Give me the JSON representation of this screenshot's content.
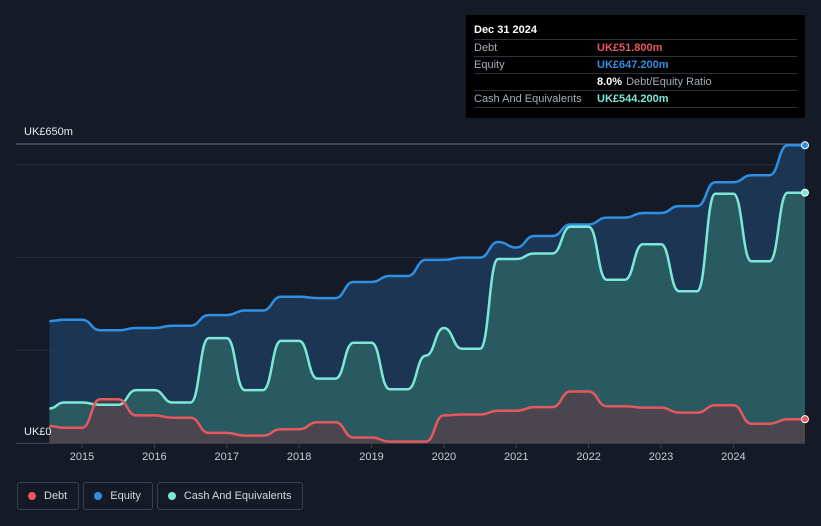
{
  "chart_data": {
    "type": "area",
    "currency_unit": "UK£m",
    "y_axis": {
      "top_label": "UK£650m",
      "bottom_label": "UK£0",
      "ylim": [
        0,
        650
      ]
    },
    "x_ticks": [
      "2015",
      "2016",
      "2017",
      "2018",
      "2019",
      "2020",
      "2021",
      "2022",
      "2023",
      "2024"
    ],
    "xlim": [
      2014.53,
      2024.99
    ],
    "grid": true,
    "legend_position": "bottom-left",
    "series": [
      {
        "name": "Equity",
        "color": "#2f8fe3",
        "points": [
          [
            2014.55,
            265
          ],
          [
            2014.75,
            268
          ],
          [
            2015.0,
            268
          ],
          [
            2015.25,
            245
          ],
          [
            2015.5,
            245
          ],
          [
            2015.75,
            250
          ],
          [
            2016.0,
            250
          ],
          [
            2016.25,
            255
          ],
          [
            2016.5,
            255
          ],
          [
            2016.75,
            278
          ],
          [
            2017.0,
            278
          ],
          [
            2017.25,
            288
          ],
          [
            2017.5,
            288
          ],
          [
            2017.75,
            318
          ],
          [
            2018.0,
            318
          ],
          [
            2018.25,
            315
          ],
          [
            2018.5,
            315
          ],
          [
            2018.75,
            350
          ],
          [
            2019.0,
            350
          ],
          [
            2019.25,
            363
          ],
          [
            2019.5,
            363
          ],
          [
            2019.75,
            398
          ],
          [
            2020.0,
            398
          ],
          [
            2020.25,
            403
          ],
          [
            2020.5,
            403
          ],
          [
            2020.75,
            437
          ],
          [
            2021.0,
            425
          ],
          [
            2021.25,
            450
          ],
          [
            2021.5,
            450
          ],
          [
            2021.75,
            475
          ],
          [
            2022.0,
            475
          ],
          [
            2022.25,
            490
          ],
          [
            2022.5,
            490
          ],
          [
            2022.75,
            500
          ],
          [
            2023.0,
            500
          ],
          [
            2023.25,
            515
          ],
          [
            2023.5,
            515
          ],
          [
            2023.75,
            567
          ],
          [
            2024.0,
            567
          ],
          [
            2024.25,
            582
          ],
          [
            2024.5,
            582
          ],
          [
            2024.75,
            647.2
          ],
          [
            2024.99,
            647.2
          ]
        ]
      },
      {
        "name": "Cash And Equivalents",
        "color": "#7ce8d8",
        "points": [
          [
            2014.55,
            75
          ],
          [
            2014.75,
            88
          ],
          [
            2015.0,
            88
          ],
          [
            2015.25,
            83
          ],
          [
            2015.5,
            83
          ],
          [
            2015.75,
            115
          ],
          [
            2016.0,
            115
          ],
          [
            2016.25,
            88
          ],
          [
            2016.5,
            88
          ],
          [
            2016.75,
            228
          ],
          [
            2017.0,
            228
          ],
          [
            2017.25,
            115
          ],
          [
            2017.5,
            115
          ],
          [
            2017.75,
            222
          ],
          [
            2018.0,
            222
          ],
          [
            2018.25,
            140
          ],
          [
            2018.5,
            140
          ],
          [
            2018.75,
            218
          ],
          [
            2019.0,
            218
          ],
          [
            2019.25,
            117
          ],
          [
            2019.5,
            117
          ],
          [
            2019.75,
            190
          ],
          [
            2020.0,
            250
          ],
          [
            2020.25,
            205
          ],
          [
            2020.5,
            205
          ],
          [
            2020.75,
            400
          ],
          [
            2021.0,
            400
          ],
          [
            2021.25,
            412
          ],
          [
            2021.5,
            412
          ],
          [
            2021.75,
            470
          ],
          [
            2022.0,
            470
          ],
          [
            2022.25,
            355
          ],
          [
            2022.5,
            355
          ],
          [
            2022.75,
            432
          ],
          [
            2023.0,
            432
          ],
          [
            2023.25,
            330
          ],
          [
            2023.5,
            330
          ],
          [
            2023.75,
            542
          ],
          [
            2024.0,
            542
          ],
          [
            2024.25,
            395
          ],
          [
            2024.5,
            395
          ],
          [
            2024.75,
            544.2
          ],
          [
            2024.99,
            544.2
          ]
        ]
      },
      {
        "name": "Debt",
        "color": "#e4585e",
        "points": [
          [
            2014.55,
            37
          ],
          [
            2014.75,
            33
          ],
          [
            2015.0,
            33
          ],
          [
            2015.25,
            95
          ],
          [
            2015.5,
            95
          ],
          [
            2015.75,
            60
          ],
          [
            2016.0,
            60
          ],
          [
            2016.25,
            55
          ],
          [
            2016.5,
            55
          ],
          [
            2016.75,
            22
          ],
          [
            2017.0,
            22
          ],
          [
            2017.25,
            16
          ],
          [
            2017.5,
            16
          ],
          [
            2017.75,
            30
          ],
          [
            2018.0,
            30
          ],
          [
            2018.25,
            45
          ],
          [
            2018.5,
            45
          ],
          [
            2018.75,
            12
          ],
          [
            2019.0,
            12
          ],
          [
            2019.25,
            3
          ],
          [
            2019.5,
            3
          ],
          [
            2019.75,
            3
          ],
          [
            2020.0,
            60
          ],
          [
            2020.25,
            62
          ],
          [
            2020.5,
            62
          ],
          [
            2020.75,
            70
          ],
          [
            2021.0,
            70
          ],
          [
            2021.25,
            78
          ],
          [
            2021.5,
            78
          ],
          [
            2021.75,
            112
          ],
          [
            2022.0,
            112
          ],
          [
            2022.25,
            80
          ],
          [
            2022.5,
            80
          ],
          [
            2022.75,
            77
          ],
          [
            2023.0,
            77
          ],
          [
            2023.25,
            66
          ],
          [
            2023.5,
            66
          ],
          [
            2023.75,
            82
          ],
          [
            2024.0,
            82
          ],
          [
            2024.25,
            42
          ],
          [
            2024.5,
            42
          ],
          [
            2024.75,
            51.8
          ],
          [
            2024.99,
            51.8
          ]
        ]
      }
    ]
  },
  "tooltip": {
    "date": "Dec 31 2024",
    "debt_label": "Debt",
    "debt_value": "UK£51.800m",
    "equity_label": "Equity",
    "equity_value": "UK£647.200m",
    "ratio_value": "8.0%",
    "ratio_label": "Debt/Equity Ratio",
    "cash_label": "Cash And Equivalents",
    "cash_value": "UK£544.200m"
  },
  "legend": [
    {
      "label": "Debt",
      "color": "#e4585e"
    },
    {
      "label": "Equity",
      "color": "#2f8fe3"
    },
    {
      "label": "Cash And Equivalents",
      "color": "#7ce8d8"
    }
  ]
}
